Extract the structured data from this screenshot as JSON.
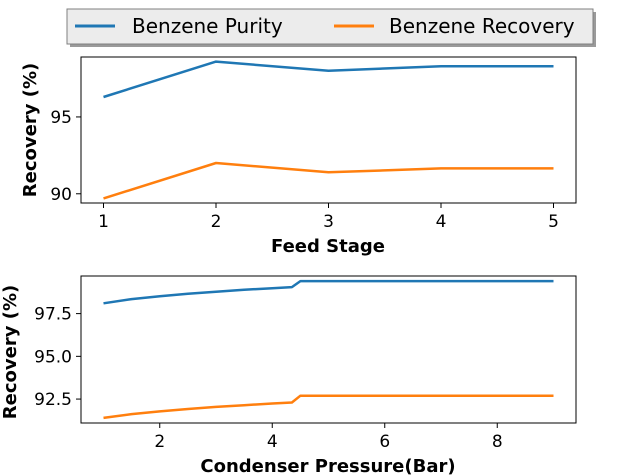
{
  "legend": {
    "entries": [
      {
        "name": "Benzene Purity",
        "color": "#1f77b4"
      },
      {
        "name": "Benzene Recovery",
        "color": "#ff7f0e"
      }
    ],
    "placement": "top-center"
  },
  "chart_data": [
    {
      "type": "line",
      "title": "",
      "xlabel": "Feed Stage",
      "ylabel": "Recovery (%)",
      "xlim": [
        0.8,
        5.2
      ],
      "ylim": [
        89.4,
        98.9
      ],
      "x_ticks": [
        1,
        2,
        3,
        4,
        5
      ],
      "y_ticks": [
        90,
        95
      ],
      "grid": false,
      "x": [
        1,
        2,
        3,
        4,
        5
      ],
      "series": [
        {
          "name": "Benzene Purity",
          "color": "#1f77b4",
          "values": [
            96.3,
            98.6,
            98.0,
            98.3,
            98.3
          ]
        },
        {
          "name": "Benzene Recovery",
          "color": "#ff7f0e",
          "values": [
            89.7,
            92.0,
            91.4,
            91.65,
            91.65
          ]
        }
      ]
    },
    {
      "type": "line",
      "title": "",
      "xlabel": "Condenser Pressure(Bar)",
      "ylabel": "Recovery (%)",
      "xlim": [
        0.6,
        9.4
      ],
      "ylim": [
        91.1,
        99.7
      ],
      "x_ticks": [
        2,
        4,
        6,
        8
      ],
      "y_ticks": [
        92.5,
        95.0,
        97.5
      ],
      "y_tick_labels": [
        "92.5",
        "95.0",
        "97.5"
      ],
      "grid": false,
      "x": [
        1.0,
        1.5,
        2.0,
        2.5,
        3.0,
        3.5,
        4.0,
        4.35,
        4.5,
        5.0,
        6.0,
        7.0,
        8.0,
        9.0
      ],
      "series": [
        {
          "name": "Benzene Purity",
          "color": "#1f77b4",
          "values": [
            98.1,
            98.35,
            98.52,
            98.66,
            98.78,
            98.9,
            98.98,
            99.05,
            99.4,
            99.4,
            99.4,
            99.4,
            99.4,
            99.4
          ]
        },
        {
          "name": "Benzene Recovery",
          "color": "#ff7f0e",
          "values": [
            91.4,
            91.62,
            91.78,
            91.92,
            92.04,
            92.14,
            92.24,
            92.3,
            92.7,
            92.7,
            92.7,
            92.7,
            92.7,
            92.7
          ]
        }
      ]
    }
  ]
}
